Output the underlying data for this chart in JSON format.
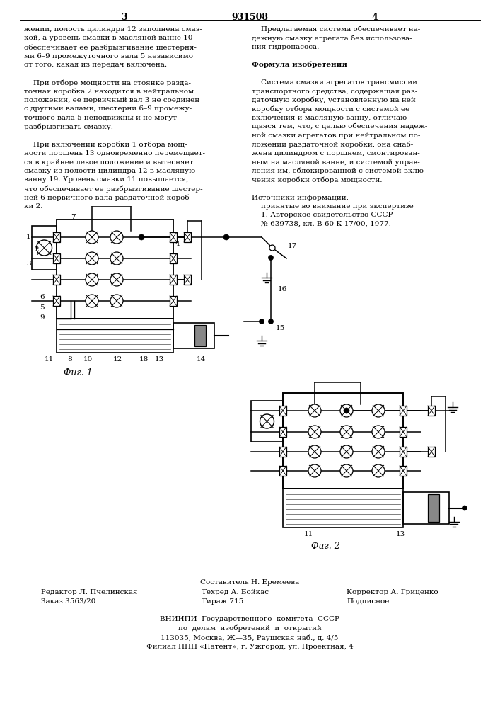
{
  "page_width": 7.07,
  "page_height": 10.0,
  "bg_color": "#ffffff",
  "patent_number": "931508",
  "page_left": "3",
  "page_right": "4",
  "left_column_text": [
    "жении, полость цилиндра 12 заполнена смаз-",
    "кой, а уровень смазки в масляной ванне 10",
    "обеспечивает ее разбрызгивание шестерня-",
    "ми 6–9 промежуточного вала 5 независимо",
    "от того, какая из передач включена.",
    "",
    "    При отборе мощности на стоянке разда-",
    "точная коробка 2 находится в нейтральном",
    "положении, ее первичный вал 3 не соединен",
    "с другими валами, шестерни 6–9 промежу-",
    "точного вала 5 неподвижны и не могут",
    "разбрызгивать смазку.",
    "",
    "    При включении коробки 1 отбора мощ-",
    "ности поршень 13 одновременно перемещает-",
    "ся в крайнее левое положение и вытесняет",
    "смазку из полости цилиндра 12 в масляную",
    "ванну 19. Уровень смазки 11 повышается,",
    "что обеспечивает ее разбрызгивание шестер-",
    "ней 6 первичного вала раздаточной короб-",
    "ки 2."
  ],
  "right_column_text": [
    "    Предлагаемая система обеспечивает на-",
    "дежную смазку агрегата без использова-",
    "ния гидронасоса.",
    "",
    "Формула изобретения",
    "",
    "    Система смазки агрегатов трансмиссии",
    "транспортного средства, содержащая раз-",
    "даточную коробку, установленную на ней",
    "коробку отбора мощности с системой ее",
    "включения и масляную ванну, отличаю-",
    "щаяся тем, что, с целью обеспечения надеж-",
    "ной смазки агрегатов при нейтральном по-",
    "ложении раздаточной коробки, она снаб-",
    "жена цилиндром с поршнем, смонтирован-",
    "ным на масляной ванне, и системой управ-",
    "ления им, сблокированной с системой вклю-",
    "чения коробки отбора мощности.",
    "",
    "Источники информации,",
    "    принятые во внимание при экспертизе",
    "    1. Авторское свидетельство СССР",
    "    № 639738, кл. В 60 К 17/00, 1977."
  ],
  "compositor": "Составитель Н. Еремеева",
  "editor_line1": "Редактор Л. Пчелинская",
  "editor_line1b": "Техред А. Бойкас",
  "editor_line1c": "Корректор А. Гриценко",
  "editor_line2": "Заказ 3563/20",
  "editor_line2b": "Тираж 715",
  "editor_line2c": "Подписное",
  "org_line1": "ВНИИПИ  Государственного  комитета  СССР",
  "org_line2": "по  делам  изобретений  и  открытий",
  "org_line3": "113035, Москва, Ж—35, Раушская наб., д. 4/5",
  "org_line4": "Филиал ППП «Патент», г. Ужгород, ул. Проектная, 4",
  "fig1_label": "Фиг. 1",
  "fig2_label": "Фиг. 2"
}
